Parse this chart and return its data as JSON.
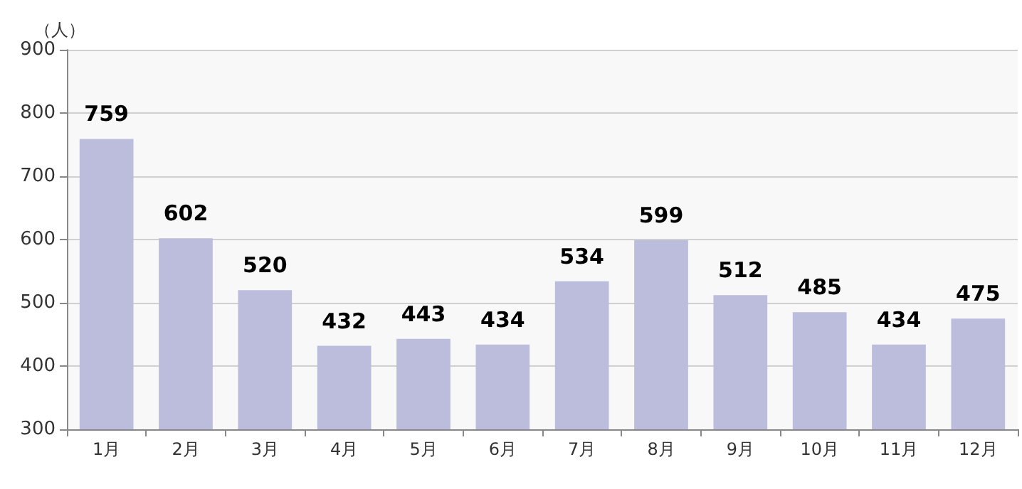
{
  "chart_data": {
    "type": "bar",
    "ylabel": "（人）",
    "categories": [
      "1月",
      "2月",
      "3月",
      "4月",
      "5月",
      "6月",
      "7月",
      "8月",
      "9月",
      "10月",
      "11月",
      "12月"
    ],
    "values": [
      759,
      602,
      520,
      432,
      443,
      434,
      534,
      599,
      512,
      485,
      434,
      475
    ],
    "color": "#bcbcdc",
    "ylim": [
      300,
      900
    ],
    "yticks": [
      300,
      400,
      500,
      600,
      700,
      800,
      900
    ],
    "grid": "y",
    "data_labels": true
  }
}
